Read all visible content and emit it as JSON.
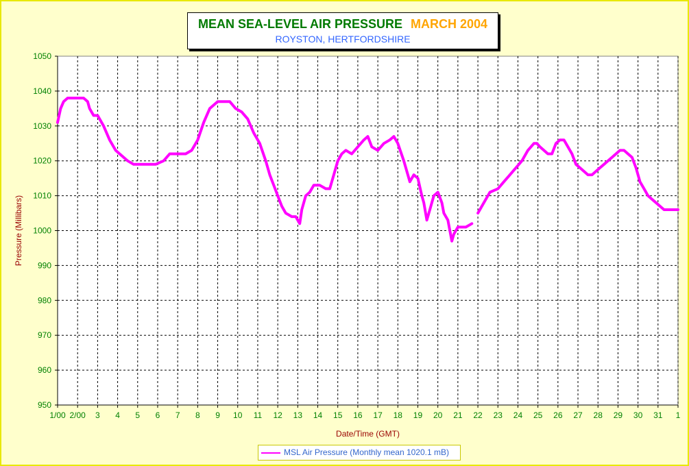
{
  "header": {
    "title": "MEAN SEA-LEVEL AIR PRESSURE",
    "month": "MARCH 2004",
    "subtitle": "ROYSTON, HERTFORDSHIRE"
  },
  "legend": {
    "label": "MSL Air Pressure (Monthly mean 1020.1 mB)"
  },
  "colors": {
    "series": "#ff00ff",
    "title": "#007a00",
    "month": "#ffa500",
    "subtitle": "#3366ff",
    "axis_text": "#008000",
    "axis_label": "#990000"
  },
  "chart_data": {
    "type": "line",
    "title": "MEAN SEA-LEVEL AIR PRESSURE   MARCH 2004",
    "subtitle": "ROYSTON, HERTFORDSHIRE",
    "xlabel": "Date/Time (GMT)",
    "ylabel": "Pressure (Millibars)",
    "ylim": [
      950,
      1050
    ],
    "yticks": [
      950,
      960,
      970,
      980,
      990,
      1000,
      1010,
      1020,
      1030,
      1040,
      1050
    ],
    "xlim": [
      1,
      32
    ],
    "xtick_labels": [
      "1/00",
      "2/00",
      "3",
      "4",
      "5",
      "6",
      "7",
      "8",
      "9",
      "10",
      "11",
      "12",
      "13",
      "14",
      "15",
      "16",
      "17",
      "18",
      "19",
      "20",
      "21",
      "22",
      "23",
      "24",
      "25",
      "26",
      "27",
      "28",
      "29",
      "30",
      "31",
      "1"
    ],
    "grid": true,
    "legend_position": "bottom-center",
    "series": [
      {
        "name": "MSL Air Pressure (Monthly mean 1020.1 mB)",
        "color": "#ff00ff",
        "segments": [
          {
            "x": [
              1.0,
              1.15,
              1.3,
              1.5,
              1.7,
              2.0,
              2.3,
              2.5,
              2.6,
              2.8,
              3.0,
              3.3,
              3.6,
              3.9,
              4.1,
              4.5,
              4.8,
              5.2,
              5.5,
              5.9,
              6.3,
              6.6,
              7.0,
              7.4,
              7.7,
              8.0,
              8.3,
              8.6,
              9.0,
              9.3,
              9.6,
              9.9,
              10.2,
              10.5,
              10.8,
              11.1,
              11.4,
              11.6,
              11.8,
              12.0,
              12.2,
              12.4,
              12.7,
              12.9,
              13.1,
              13.2,
              13.4,
              13.6,
              13.8,
              14.1,
              14.4,
              14.6,
              14.8,
              15.0,
              15.2,
              15.4,
              15.7,
              16.0,
              16.3,
              16.5,
              16.7,
              17.0,
              17.3,
              17.6,
              17.8,
              18.0,
              18.3,
              18.5,
              18.6,
              18.8,
              19.0,
              19.2,
              19.3,
              19.45,
              19.6,
              19.8,
              20.0,
              20.2,
              20.3,
              20.5,
              20.6,
              20.7,
              20.8,
              21.0,
              21.2,
              21.4,
              21.7
            ],
            "y": [
              1031,
              1035,
              1037,
              1038,
              1038,
              1038,
              1038,
              1037,
              1035,
              1033,
              1033,
              1030,
              1026,
              1023,
              1022,
              1020,
              1019,
              1019,
              1019,
              1019,
              1020,
              1022,
              1022,
              1022,
              1023,
              1026,
              1031,
              1035,
              1037,
              1037,
              1037,
              1035,
              1034,
              1032,
              1028,
              1025,
              1020,
              1016,
              1013,
              1010,
              1007,
              1005,
              1004,
              1004,
              1002,
              1006,
              1010,
              1011,
              1013,
              1013,
              1012,
              1012,
              1016,
              1020,
              1022,
              1023,
              1022,
              1024,
              1026,
              1027,
              1024,
              1023,
              1025,
              1026,
              1027,
              1025,
              1020,
              1016,
              1014,
              1016,
              1015,
              1010,
              1008,
              1003,
              1006,
              1010,
              1011,
              1008,
              1005,
              1003,
              1000,
              997,
              999,
              1001,
              1001,
              1001,
              1002
            ]
          },
          {
            "x": [
              22.0,
              22.3,
              22.6,
              23.0,
              23.3,
              23.6,
              23.9,
              24.2,
              24.5,
              24.8,
              24.95,
              25.1,
              25.3,
              25.5,
              25.7,
              25.9,
              26.1,
              26.3,
              26.5,
              26.7,
              26.9,
              27.1,
              27.3,
              27.5,
              27.7,
              27.9,
              28.1,
              28.3,
              28.5,
              28.7,
              28.9,
              29.1,
              29.3,
              29.5,
              29.7,
              29.9,
              30.1,
              30.3,
              30.5,
              30.7,
              30.9,
              31.1,
              31.3,
              31.5,
              31.7,
              32.0
            ],
            "y": [
              1005,
              1008,
              1011,
              1012,
              1014,
              1016,
              1018,
              1020,
              1023,
              1025,
              1025,
              1024,
              1023,
              1022,
              1022,
              1025,
              1026,
              1026,
              1024,
              1022,
              1019,
              1018,
              1017,
              1016,
              1016,
              1017,
              1018,
              1019,
              1020,
              1021,
              1022,
              1023,
              1023,
              1022,
              1021,
              1018,
              1014,
              1012,
              1010,
              1009,
              1008,
              1007,
              1006,
              1006,
              1006,
              1006
            ]
          }
        ]
      }
    ]
  }
}
